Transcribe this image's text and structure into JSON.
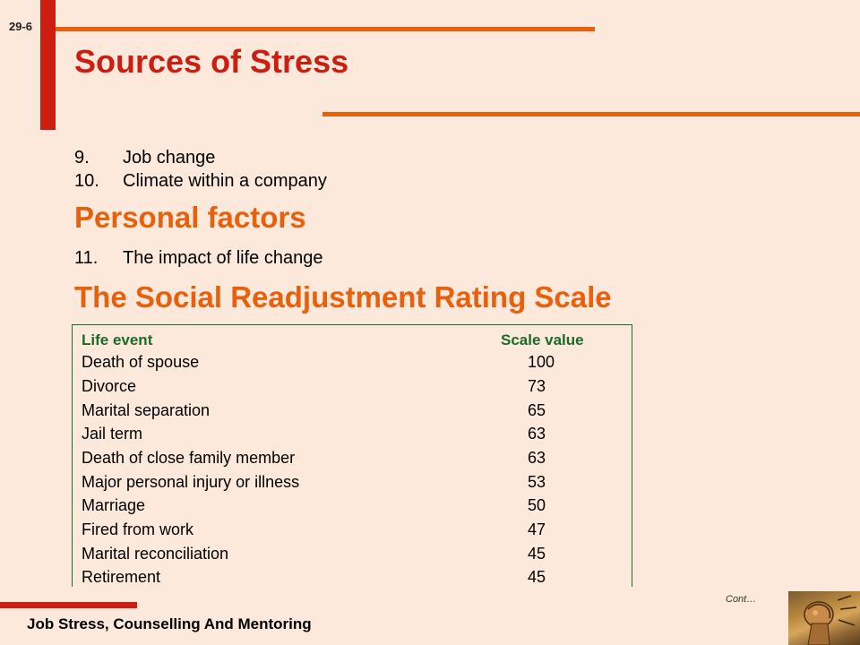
{
  "slide_number": "29-6",
  "title": "Sources of Stress",
  "items_top": [
    {
      "num": "9.",
      "text": "Job change"
    },
    {
      "num": "10.",
      "text": "Climate within a company"
    }
  ],
  "section_personal": "Personal factors",
  "items_personal": [
    {
      "num": "11.",
      "text": "The impact of life change"
    }
  ],
  "section_scale": "The Social Readjustment Rating Scale",
  "table": {
    "headers": {
      "event": "Life event",
      "value": "Scale value"
    },
    "rows": [
      {
        "event": "Death of spouse",
        "value": "100"
      },
      {
        "event": "Divorce",
        "value": "73"
      },
      {
        "event": "Marital separation",
        "value": "65"
      },
      {
        "event": "Jail term",
        "value": "63"
      },
      {
        "event": "Death of close family member",
        "value": "63"
      },
      {
        "event": "Major personal injury or illness",
        "value": "53"
      },
      {
        "event": "Marriage",
        "value": "50"
      },
      {
        "event": "Fired from work",
        "value": "47"
      },
      {
        "event": "Marital reconciliation",
        "value": "45"
      },
      {
        "event": "Retirement",
        "value": "45"
      }
    ]
  },
  "cont_label": "Cont…",
  "footer": "Job Stress, Counselling And Mentoring",
  "colors": {
    "background": "#fce9dc",
    "title_red": "#cc1e10",
    "heading_orange": "#e8600c",
    "table_green": "#1a6b2a"
  }
}
